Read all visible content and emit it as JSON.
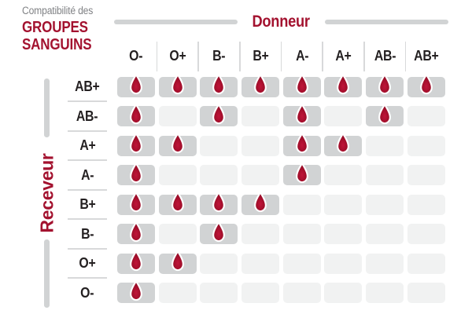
{
  "title": {
    "subtitle": "Compatibilité des",
    "main_line1": "GROUPES",
    "main_line2": "SANGUINS"
  },
  "axes": {
    "donor": "Donneur",
    "receiver": "Receveur"
  },
  "donors": [
    "O-",
    "O+",
    "B-",
    "B+",
    "A-",
    "A+",
    "AB-",
    "AB+"
  ],
  "receivers": [
    "AB+",
    "AB-",
    "A+",
    "A-",
    "B+",
    "B-",
    "O+",
    "O-"
  ],
  "chart_data": {
    "type": "heatmap",
    "title": "Compatibilité des GROUPES SANGUINS",
    "xlabel": "Donneur",
    "ylabel": "Receveur",
    "x_categories": [
      "O-",
      "O+",
      "B-",
      "B+",
      "A-",
      "A+",
      "AB-",
      "AB+"
    ],
    "y_categories": [
      "AB+",
      "AB-",
      "A+",
      "A-",
      "B+",
      "B-",
      "O+",
      "O-"
    ],
    "values": [
      [
        1,
        1,
        1,
        1,
        1,
        1,
        1,
        1
      ],
      [
        1,
        0,
        1,
        0,
        1,
        0,
        1,
        0
      ],
      [
        1,
        1,
        0,
        0,
        1,
        1,
        0,
        0
      ],
      [
        1,
        0,
        0,
        0,
        1,
        0,
        0,
        0
      ],
      [
        1,
        1,
        1,
        1,
        0,
        0,
        0,
        0
      ],
      [
        1,
        0,
        1,
        0,
        0,
        0,
        0,
        0
      ],
      [
        1,
        1,
        0,
        0,
        0,
        0,
        0,
        0
      ],
      [
        1,
        0,
        0,
        0,
        0,
        0,
        0,
        0
      ]
    ],
    "marker_icon": "blood-drop-icon"
  },
  "icons": {
    "compatible_marker": "blood-drop-icon"
  },
  "colors": {
    "accent_red": "#A3122F",
    "drop_red_light": "#C0153A",
    "drop_red_mid": "#A50F2C",
    "drop_red_dark": "#8C0B23",
    "cell_filled": "#D1D3D4",
    "cell_empty": "#F1F2F2",
    "separator": "#D8D9DA",
    "flank_line": "#D1D3D4",
    "text_dark": "#231F20",
    "text_gray": "#808285",
    "background": "#FFFFFF"
  }
}
